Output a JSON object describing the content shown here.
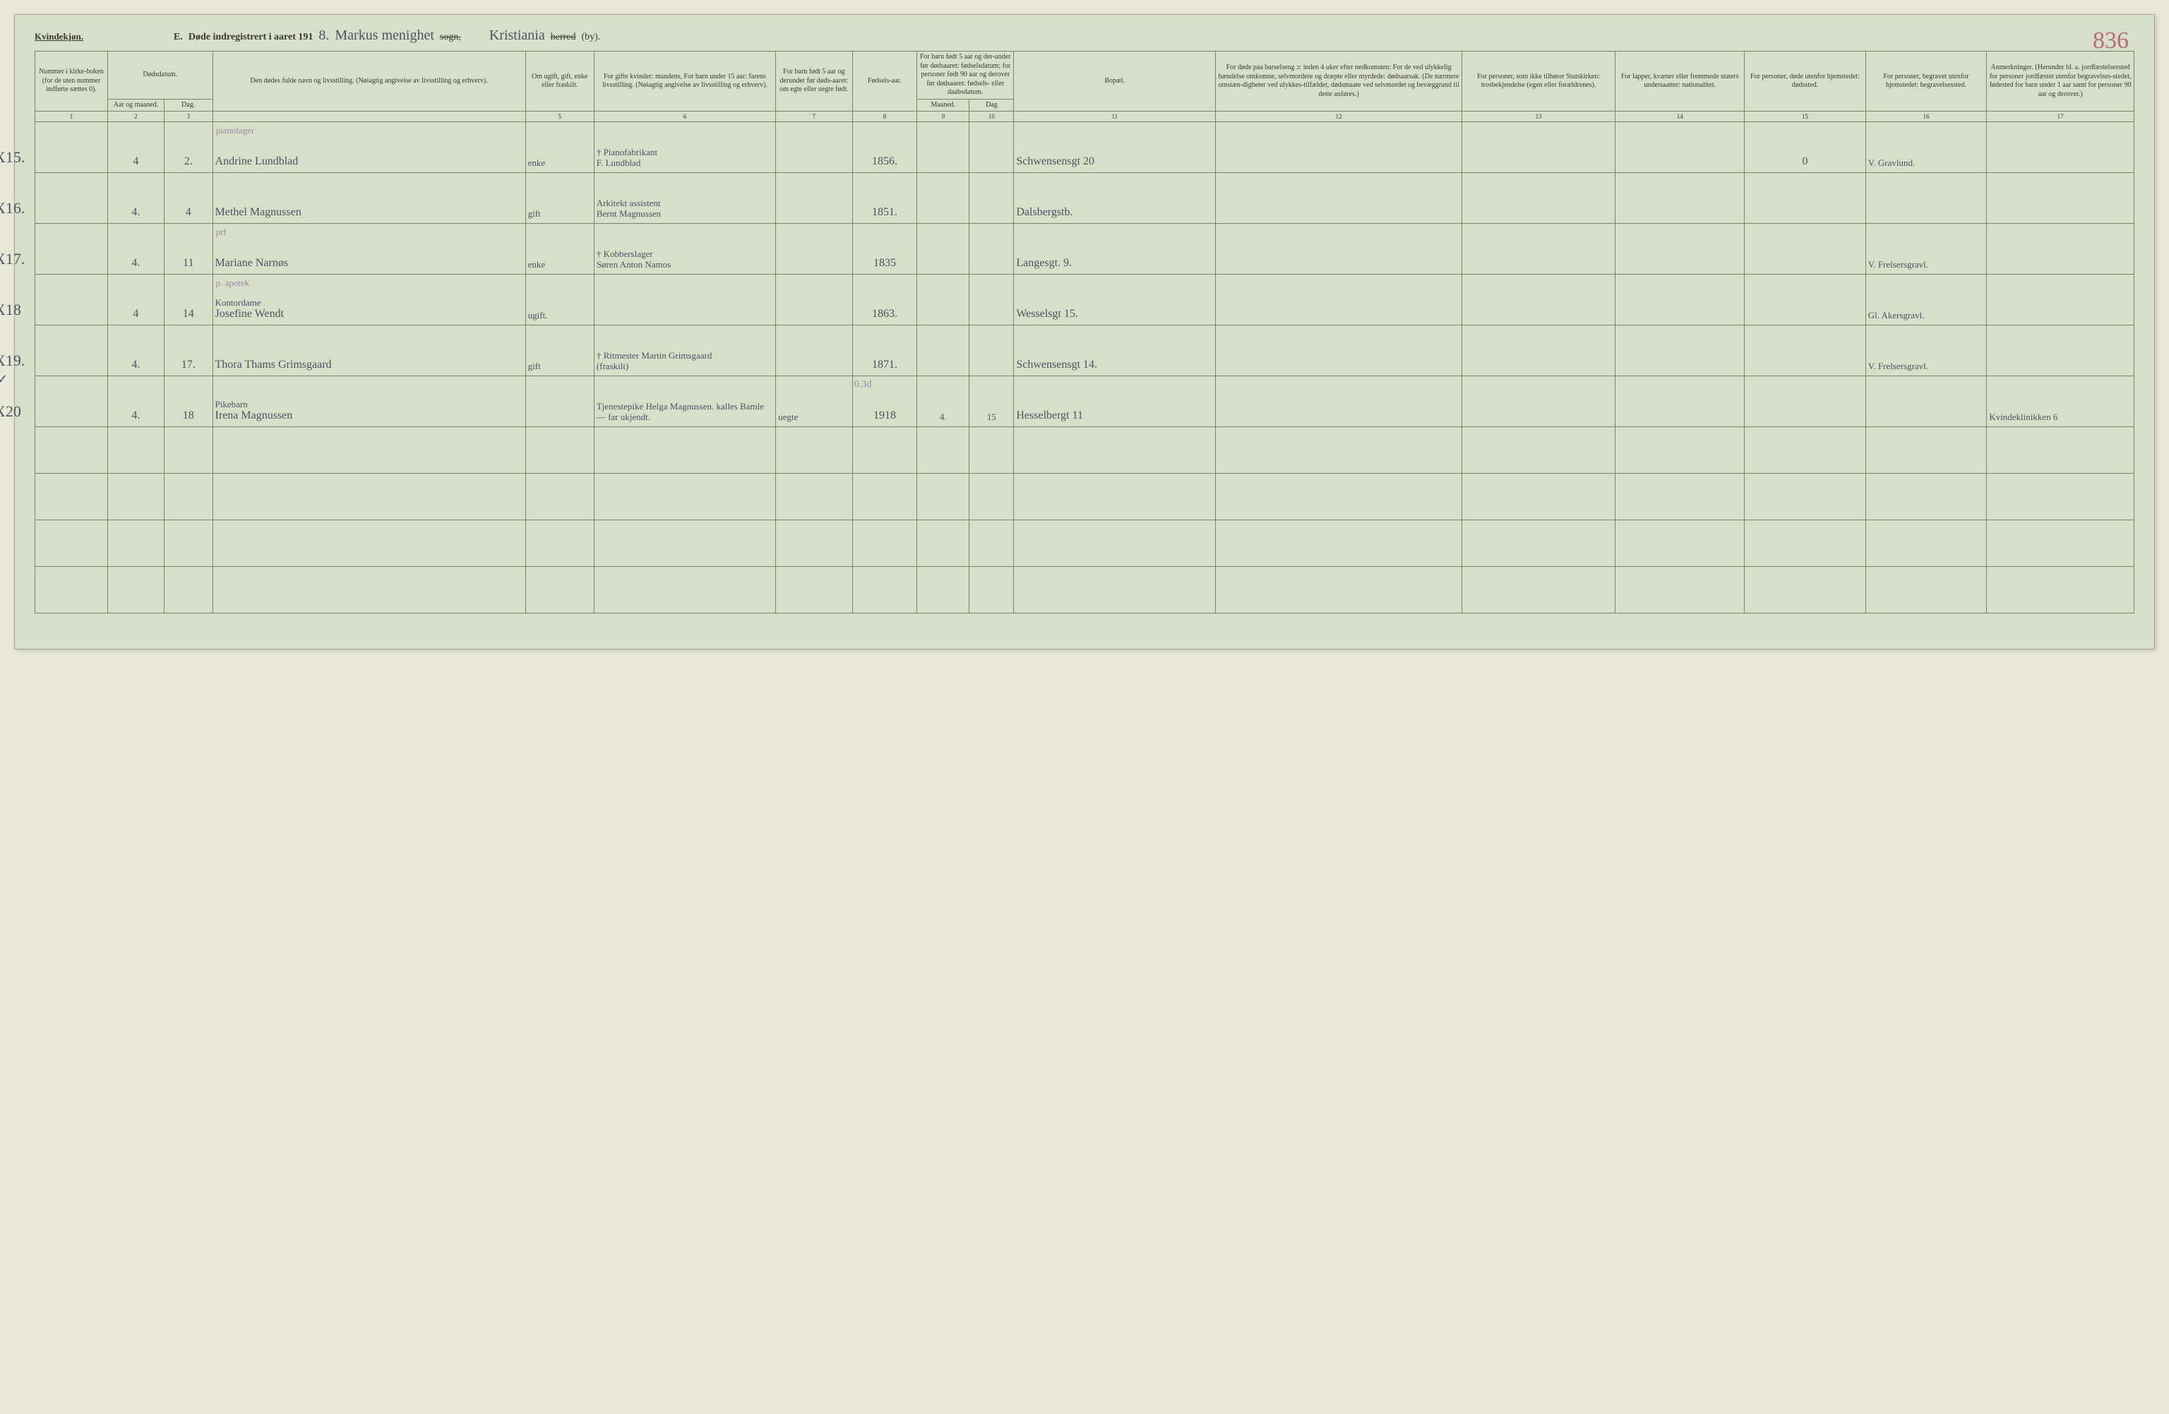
{
  "colors": {
    "page_bg": "#d8dfc8",
    "body_bg": "#e8e8d8",
    "rule": "#7a8268",
    "ink": "#4a5264",
    "pencil": "#9a8aa8",
    "pagenum": "#b86a72",
    "text": "#3a3a2e"
  },
  "header": {
    "gender": "Kvindekjøn.",
    "section_letter": "E.",
    "title_printed": "Døde indregistrert i aaret 191",
    "year_suffix": "8.",
    "parish_handwritten": "Markus menighet",
    "parish_struck": "sogn,",
    "city_handwritten": "Kristiania",
    "city_struck": "herred",
    "city_tail": "(by).",
    "page_number": "836"
  },
  "columns": {
    "c1": "Nummer i kirke-boken (for de uten nummer indførte sættes 0).",
    "c2_top": "Dødsdatum.",
    "c2a": "Aar og maaned.",
    "c2b": "Dag.",
    "c4": "Den dødes fulde navn og livsstilling.\n(Nøiagtig angivelse av livsstilling og erhverv).",
    "c5": "Om ugift, gift, enke eller fraskilt.",
    "c6": "For gifte kvinder: mandens,\nFor barn under 15 aar: farens livsstilling.\n(Nøiagtig angivelse av livsstilling og erhverv).",
    "c7": "For barn født 5 aar og derunder før døds-aaret: om egte eller uegte født.",
    "c8": "Fødsels-aar.",
    "c9_10": "For barn født 5 aar og der-under før dødsaaret: fødselsdatum; for personer født 90 aar og derover før dødsaaret: fødsels- eller daabsdatum.",
    "c9": "Maaned.",
    "c10": "Dag",
    "c11": "Bopæl.",
    "c12": "For døde paa barselseng ɔ: inden 4 uker efter nedkomsten:\nFor de ved ulykkelig hændelse omkomne, selvmordere og dræpte eller myrdede: dødsaarsak.\n(De nærmere omstæn-digheter ved ulykkes-tilfældet, dødsmaate ved selvmordet og bevæggrund til dette anføres.)",
    "c13": "For personer, som ikke tilhører Statskirken: trosbekjendelse (egen eller forældrenes).",
    "c14": "For lapper, kvæner eller fremmede staters undersaatter: nationalitet.",
    "c15": "For personer, døde utenfor hjemstedet: dødssted.",
    "c16": "For personer, begravet utenfor hjemstedet: begravelsessted.",
    "c17": "Anmerkninger.\n(Herunder bl. a. jordfæstelsessted for personer jordfæstet utenfor begravelses-stedet, fødested for barn under 1 aar samt for personer 90 aar og derover.)"
  },
  "colnums": [
    "1",
    "2",
    "3",
    "",
    "5",
    "6",
    "7",
    "8",
    "9",
    "10",
    "11",
    "12",
    "13",
    "14",
    "15",
    "16",
    "17"
  ],
  "col_widths_pct": [
    3.6,
    2.8,
    2.4,
    15.5,
    3.4,
    9.0,
    3.8,
    3.2,
    2.6,
    2.2,
    10.0,
    12.2,
    7.6,
    6.4,
    6.0,
    6.0,
    7.3
  ],
  "rows": [
    {
      "margin": "X15.",
      "aar_mnd": "4",
      "dag": "2.",
      "note_above_name": "pianolager",
      "name": "Andrine Lundblad",
      "status": "enke",
      "spouse_note": "† Pianofabrikant",
      "spouse": "F. Lundblad",
      "birth_year": "1856.",
      "residence": "Schwensensgt 20",
      "col15": "0",
      "burial": "V. Gravlund."
    },
    {
      "margin": "X16.",
      "aar_mnd": "4.",
      "dag": "4",
      "name": "Methel Magnussen",
      "status": "gift",
      "spouse_note": "Arkitekt assistent",
      "spouse": "Bernt Magnussen",
      "birth_year": "1851.",
      "residence": "Dalsbergstb."
    },
    {
      "margin": "X17.",
      "aar_mnd": "4.",
      "dag": "11",
      "note_above_name": "prf",
      "name": "Mariane Narnøs",
      "status": "enke",
      "spouse_note": "† Kobberslager",
      "spouse": "Søren Anton Namos",
      "birth_year": "1835",
      "residence": "Langesgt. 9.",
      "burial": "V. Frelsersgravl."
    },
    {
      "margin": "X18",
      "aar_mnd": "4",
      "dag": "14",
      "note_above_name": "p. apotek",
      "name_line1": "Kontordame",
      "name": "Josefine Wendt",
      "status": "ugift.",
      "birth_year": "1863.",
      "residence": "Wesselsgt 15.",
      "burial": "Gl. Akersgravl."
    },
    {
      "margin": "X19.",
      "aar_mnd": "4.",
      "dag": "17.",
      "name": "Thora Thams Grimsgaard",
      "status": "gift",
      "spouse_note": "† Ritmester Martin Grimsgaard",
      "spouse": "(fraskilt)",
      "birth_year": "1871.",
      "residence": "Schwensensgt 14.",
      "burial": "V. Frelsersgravl."
    },
    {
      "margin": "X20",
      "check_above": "✓",
      "aar_mnd": "4.",
      "dag": "18",
      "name_line1": "Pikebarn",
      "name": "Irena Magnussen",
      "spouse_note": "Tjenestepike Helga Magnussen. kalles Bamle — far ukjendt.",
      "legit": "uegte",
      "birth_year": "1918",
      "birth_note": "0.3d",
      "birth_month": "4.",
      "birth_day": "15",
      "residence": "Hesselbergt 11",
      "remark": "Kvindeklinikken 6"
    }
  ],
  "blank_rows": 4
}
